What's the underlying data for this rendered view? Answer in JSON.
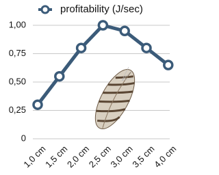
{
  "chart_data": {
    "type": "line",
    "categories": [
      "1,0 cm",
      "1,5 cm",
      "2,0 cm",
      "2,5 cm",
      "3,0 cm",
      "3,5 cm",
      "4,0 cm"
    ],
    "series": [
      {
        "name": "profitability (J/sec)",
        "color": "#3b5b79",
        "values": [
          0.3,
          0.55,
          0.8,
          1.0,
          0.95,
          0.8,
          0.65
        ]
      }
    ],
    "ylim": [
      0,
      1.0
    ],
    "yticks": [
      0,
      {
        "value": 0.25,
        "label": "0,25"
      },
      {
        "value": 0.5,
        "label": "0,50"
      },
      {
        "value": 0.75,
        "label": "0,75"
      },
      {
        "value": 1.0,
        "label": "1,00"
      }
    ],
    "grid": true,
    "legend": "top"
  }
}
